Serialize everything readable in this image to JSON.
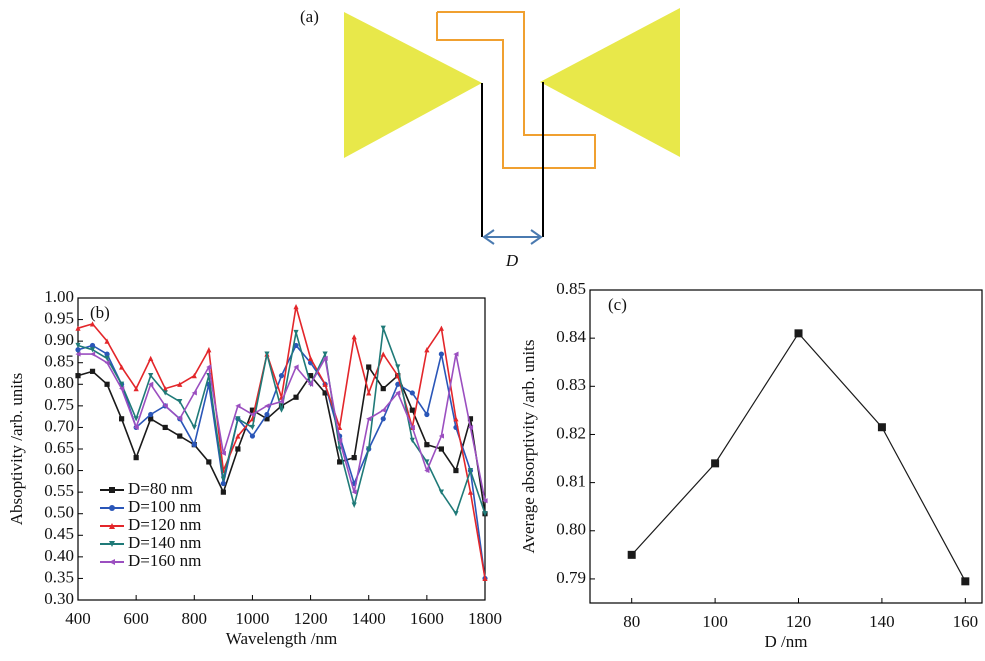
{
  "diagram": {
    "label": "(a)",
    "dimension": "D"
  },
  "chart_data": [
    {
      "type": "line",
      "title": "(b)",
      "x_label": "Wavelength /nm",
      "y_label": "Absoptivity /arb. units",
      "x": [
        400,
        450,
        500,
        550,
        600,
        650,
        700,
        750,
        800,
        850,
        900,
        950,
        1000,
        1050,
        1100,
        1150,
        1200,
        1250,
        1300,
        1350,
        1400,
        1450,
        1500,
        1550,
        1600,
        1650,
        1700,
        1750,
        1800
      ],
      "series": [
        {
          "name": "D=80 nm",
          "color": "#1a1a1a",
          "marker": "square",
          "values": [
            0.82,
            0.83,
            0.8,
            0.72,
            0.63,
            0.72,
            0.7,
            0.68,
            0.66,
            0.62,
            0.55,
            0.65,
            0.74,
            0.72,
            0.75,
            0.77,
            0.82,
            0.78,
            0.62,
            0.63,
            0.84,
            0.79,
            0.82,
            0.74,
            0.66,
            0.65,
            0.6,
            0.72,
            0.5
          ]
        },
        {
          "name": "D=100 nm",
          "color": "#2a56b8",
          "marker": "circle",
          "values": [
            0.88,
            0.89,
            0.87,
            0.8,
            0.7,
            0.73,
            0.75,
            0.72,
            0.66,
            0.8,
            0.57,
            0.72,
            0.68,
            0.73,
            0.82,
            0.89,
            0.85,
            0.8,
            0.68,
            0.57,
            0.65,
            0.72,
            0.8,
            0.78,
            0.73,
            0.87,
            0.7,
            0.6,
            0.35
          ]
        },
        {
          "name": "D=120 nm",
          "color": "#e3262a",
          "marker": "triangle-up",
          "values": [
            0.93,
            0.94,
            0.9,
            0.84,
            0.79,
            0.86,
            0.79,
            0.8,
            0.82,
            0.88,
            0.6,
            0.68,
            0.72,
            0.87,
            0.77,
            0.98,
            0.86,
            0.8,
            0.7,
            0.91,
            0.78,
            0.87,
            0.82,
            0.7,
            0.88,
            0.93,
            0.72,
            0.55,
            0.35
          ]
        },
        {
          "name": "D=140 nm",
          "color": "#1f7a78",
          "marker": "triangle-down",
          "values": [
            0.89,
            0.88,
            0.86,
            0.8,
            0.72,
            0.82,
            0.78,
            0.76,
            0.7,
            0.82,
            0.58,
            0.72,
            0.7,
            0.87,
            0.74,
            0.92,
            0.8,
            0.87,
            0.65,
            0.52,
            0.65,
            0.93,
            0.84,
            0.67,
            0.62,
            0.55,
            0.5,
            0.6,
            0.5
          ]
        },
        {
          "name": "D=160 nm",
          "color": "#9b4fc0",
          "marker": "triangle-left",
          "values": [
            0.87,
            0.87,
            0.85,
            0.79,
            0.7,
            0.8,
            0.75,
            0.72,
            0.78,
            0.84,
            0.64,
            0.75,
            0.73,
            0.75,
            0.76,
            0.84,
            0.8,
            0.86,
            0.67,
            0.55,
            0.72,
            0.74,
            0.78,
            0.7,
            0.6,
            0.68,
            0.87,
            0.7,
            0.53
          ]
        }
      ],
      "xlim": [
        400,
        1800
      ],
      "xticks": [
        400,
        600,
        800,
        1000,
        1200,
        1400,
        1600,
        1800
      ],
      "ylim": [
        0.3,
        1.0
      ],
      "yticks": [
        {
          "value": 0.3,
          "label": "0.30"
        },
        0.35,
        {
          "value": 0.4,
          "label": "0.40"
        },
        0.45,
        {
          "value": 0.5,
          "label": "0.50"
        },
        0.55,
        {
          "value": 0.6,
          "label": "0.60"
        },
        0.65,
        {
          "value": 0.7,
          "label": "0.70"
        },
        0.75,
        {
          "value": 0.8,
          "label": "0.80"
        },
        0.85,
        {
          "value": 0.9,
          "label": "0.90"
        },
        0.95,
        {
          "value": 1.0,
          "label": "1.00"
        }
      ]
    },
    {
      "type": "line",
      "title": "(c)",
      "x_label": "D /nm",
      "y_label": "Average absorptivity /arb. units",
      "x": [
        80,
        100,
        120,
        140,
        160
      ],
      "series": [
        {
          "color": "#1a1a1a",
          "marker": "square",
          "values": [
            0.795,
            0.814,
            0.841,
            0.8215,
            0.7895
          ]
        }
      ],
      "xlim": [
        70,
        164
      ],
      "xticks": [
        80,
        100,
        120,
        140,
        160
      ],
      "ylim": [
        0.785,
        0.85
      ],
      "yticks": [
        0.79,
        {
          "value": 0.8,
          "label": "0.80"
        },
        0.81,
        0.82,
        0.83,
        0.84,
        0.85
      ]
    }
  ]
}
